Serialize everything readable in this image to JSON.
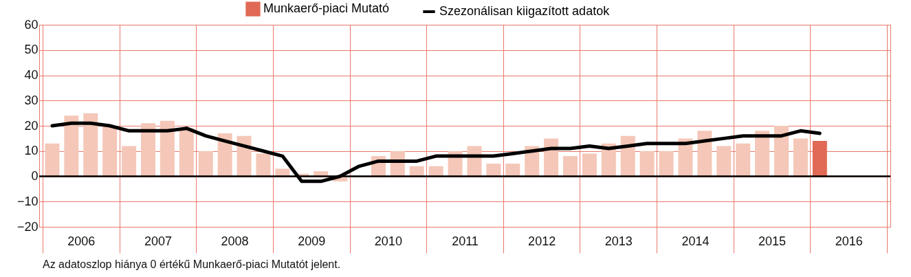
{
  "chart_data": {
    "type": "bar",
    "x": [
      2006.125,
      2006.375,
      2006.625,
      2006.875,
      2007.125,
      2007.375,
      2007.625,
      2007.875,
      2008.125,
      2008.375,
      2008.625,
      2008.875,
      2009.125,
      2009.375,
      2009.625,
      2009.875,
      2010.125,
      2010.375,
      2010.625,
      2010.875,
      2011.125,
      2011.375,
      2011.625,
      2011.875,
      2012.125,
      2012.375,
      2012.625,
      2012.875,
      2013.125,
      2013.375,
      2013.625,
      2013.875,
      2014.125,
      2014.375,
      2014.625,
      2014.875,
      2015.125,
      2015.375,
      2015.625,
      2015.875,
      2016.125
    ],
    "series": [
      {
        "name": "Munkaerő-piaci Mutató",
        "color": "#e06a55",
        "values": [
          13,
          24,
          25,
          20,
          12,
          21,
          22,
          19,
          10,
          17,
          16,
          9,
          3,
          1,
          2,
          -2,
          0,
          8,
          10,
          4,
          4,
          10,
          12,
          5,
          5,
          12,
          15,
          8,
          9,
          13,
          16,
          10,
          10,
          15,
          18,
          12,
          13,
          18,
          20,
          15,
          14
        ],
        "colors": [
          "#f4c7b8",
          "#f4c7b8",
          "#f4c7b8",
          "#f4c7b8",
          "#f4c7b8",
          "#f4c7b8",
          "#f4c7b8",
          "#f4c7b8",
          "#f4c7b8",
          "#f4c7b8",
          "#f4c7b8",
          "#f4c7b8",
          "#f4c7b8",
          "#f4c7b8",
          "#f4c7b8",
          "#f4c7b8",
          "#f4c7b8",
          "#f4c7b8",
          "#f4c7b8",
          "#f4c7b8",
          "#f4c7b8",
          "#f4c7b8",
          "#f4c7b8",
          "#f4c7b8",
          "#f4c7b8",
          "#f4c7b8",
          "#f4c7b8",
          "#f4c7b8",
          "#f4c7b8",
          "#f4c7b8",
          "#f4c7b8",
          "#f4c7b8",
          "#f4c7b8",
          "#f4c7b8",
          "#f4c7b8",
          "#f4c7b8",
          "#f4c7b8",
          "#f4c7b8",
          "#f4c7b8",
          "#f4c7b8",
          "#e06a55"
        ]
      },
      {
        "name": "Szezonálisan kiigazított adatok",
        "type": "line",
        "color": "#000000",
        "values": [
          20,
          21,
          21,
          20,
          18,
          18,
          18,
          19,
          16,
          14,
          12,
          10,
          8,
          -2,
          -2,
          0,
          4,
          6,
          6,
          6,
          8,
          8,
          8,
          8,
          9,
          10,
          11,
          11,
          12,
          11,
          12,
          13,
          13,
          13,
          14,
          15,
          16,
          16,
          16,
          18,
          17
        ]
      }
    ],
    "xlim": [
      2006,
      2017
    ],
    "xticks": [
      {
        "value": 2006,
        "label": null
      },
      {
        "value": 2006.5,
        "label": "2006"
      },
      {
        "value": 2007,
        "label": null
      },
      {
        "value": 2007.5,
        "label": "2007"
      },
      {
        "value": 2008,
        "label": null
      },
      {
        "value": 2008.5,
        "label": "2008"
      },
      {
        "value": 2009,
        "label": null
      },
      {
        "value": 2009.5,
        "label": "2009"
      },
      {
        "value": 2010,
        "label": null
      },
      {
        "value": 2010.5,
        "label": "2010"
      },
      {
        "value": 2011,
        "label": null
      },
      {
        "value": 2011.5,
        "label": "2011"
      },
      {
        "value": 2012,
        "label": null
      },
      {
        "value": 2012.5,
        "label": "2012"
      },
      {
        "value": 2013,
        "label": null
      },
      {
        "value": 2013.5,
        "label": "2013"
      },
      {
        "value": 2014,
        "label": null
      },
      {
        "value": 2014.5,
        "label": "2014"
      },
      {
        "value": 2015,
        "label": null
      },
      {
        "value": 2015.5,
        "label": "2015"
      },
      {
        "value": 2016,
        "label": null
      },
      {
        "value": 2016.5,
        "label": "2016"
      },
      {
        "value": 2017,
        "label": null
      }
    ],
    "ylim": [
      -20,
      60
    ],
    "yticks": [
      -20,
      -10,
      0,
      10,
      20,
      30,
      40,
      50,
      60
    ],
    "ref_lines": [
      {
        "axis": "y",
        "value": 0,
        "color": "#000000"
      }
    ],
    "grid": true,
    "legend": "top",
    "annotations": [
      "Az adatoszlop hiánya 0 értékű Munkaerő-piaci Mutatót jelent."
    ]
  }
}
